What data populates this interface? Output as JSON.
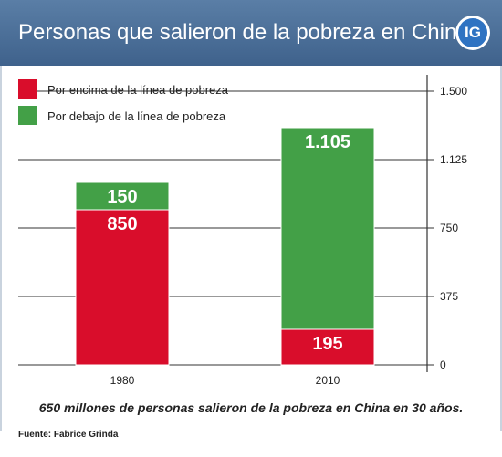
{
  "header": {
    "title": "Personas que salieron de la pobreza en China",
    "logo_text": "IG"
  },
  "chart_data": {
    "type": "bar",
    "stacked": true,
    "categories": [
      "1980",
      "2010"
    ],
    "series": [
      {
        "name": "Por encima de la línea de pobreza",
        "color": "#d90d2b",
        "values": [
          850,
          195
        ],
        "labels": [
          "850",
          "195"
        ]
      },
      {
        "name": "Por debajo de la línea de pobreza",
        "color": "#43a047",
        "values": [
          150,
          1105
        ],
        "labels": [
          "150",
          "1.105"
        ]
      }
    ],
    "yticks": [
      0,
      375,
      750,
      1125,
      1500
    ],
    "ytick_labels": [
      "0",
      "375",
      "750",
      "1.125",
      "1.500"
    ],
    "ylim": [
      0,
      1500
    ],
    "y_axis_position": "right",
    "legend_position": "top-left"
  },
  "caption": "650 millones de personas salieron de la pobreza en China en 30 años.",
  "source": "Fuente: Fabrice Grinda"
}
